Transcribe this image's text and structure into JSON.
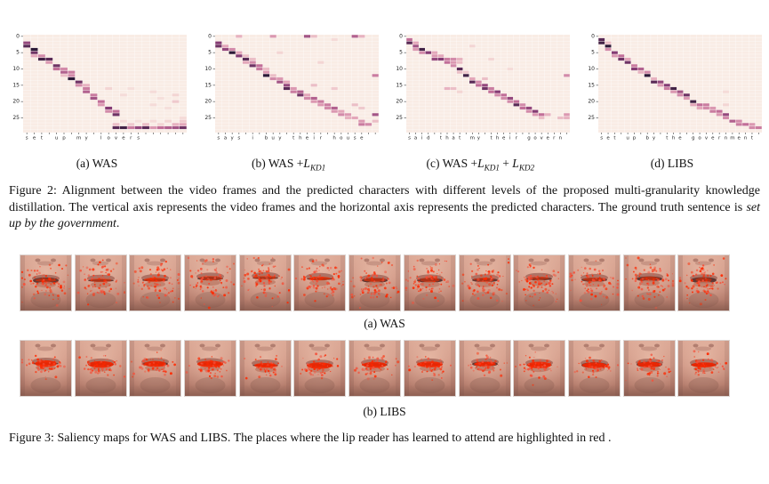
{
  "figure2": {
    "caption_prefix": "Figure 2: Alignment between the video frames and the predicted characters with different levels of the proposed multi-granularity knowledge distillation. The vertical axis represents the video frames and the horizontal axis represents the predicted characters. The ground truth sentence is ",
    "caption_italic": "set up by the government",
    "caption_suffix": "."
  },
  "chart_data": [
    {
      "type": "heatmap",
      "id": "was",
      "caption_parts": [
        {
          "t": "(a) WAS",
          "style": "plain"
        }
      ],
      "x_sentence": "set up my lovers",
      "n_cols": 22,
      "n_rows": 30,
      "y_ticks": [
        0,
        5,
        10,
        15,
        20,
        25
      ],
      "bg": "#f9ece5",
      "cells": [
        [
          2,
          0,
          0.75
        ],
        [
          3,
          0,
          0.9
        ],
        [
          4,
          1,
          1
        ],
        [
          5,
          1,
          0.85
        ],
        [
          6,
          1,
          0.4
        ],
        [
          6,
          2,
          0.5
        ],
        [
          7,
          2,
          0.95
        ],
        [
          7,
          3,
          0.9
        ],
        [
          8,
          3,
          0.45
        ],
        [
          9,
          4,
          0.85
        ],
        [
          10,
          4,
          0.6
        ],
        [
          10,
          5,
          0.5
        ],
        [
          11,
          5,
          0.65
        ],
        [
          11,
          6,
          0.55
        ],
        [
          12,
          5,
          0.3
        ],
        [
          12,
          6,
          0.5
        ],
        [
          13,
          6,
          1
        ],
        [
          14,
          7,
          0.85
        ],
        [
          15,
          7,
          0.5
        ],
        [
          15,
          8,
          0.35
        ],
        [
          16,
          8,
          0.55
        ],
        [
          17,
          8,
          0.65
        ],
        [
          18,
          9,
          0.55
        ],
        [
          19,
          9,
          0.7
        ],
        [
          20,
          10,
          0.6
        ],
        [
          21,
          10,
          0.45
        ],
        [
          22,
          11,
          0.8
        ],
        [
          23,
          11,
          0.5
        ],
        [
          23,
          12,
          0.6
        ],
        [
          24,
          12,
          0.85
        ],
        [
          16,
          11,
          0.2
        ],
        [
          16,
          14,
          0.12
        ],
        [
          17,
          17,
          0.15
        ],
        [
          18,
          13,
          0.15
        ],
        [
          18,
          20,
          0.2
        ],
        [
          19,
          18,
          0.12
        ],
        [
          20,
          20,
          0.25
        ],
        [
          21,
          17,
          0.15
        ],
        [
          22,
          19,
          0.12
        ],
        [
          25,
          21,
          0.15
        ],
        [
          26,
          13,
          0.15
        ],
        [
          26,
          15,
          0.12
        ],
        [
          26,
          17,
          0.15
        ],
        [
          26,
          19,
          0.2
        ],
        [
          26,
          21,
          0.25
        ],
        [
          27,
          12,
          0.3
        ],
        [
          27,
          14,
          0.25
        ],
        [
          27,
          16,
          0.3
        ],
        [
          27,
          18,
          0.2
        ],
        [
          27,
          20,
          0.35
        ],
        [
          27,
          21,
          0.4
        ],
        [
          28,
          12,
          0.9
        ],
        [
          28,
          13,
          0.95
        ],
        [
          28,
          14,
          0.55
        ],
        [
          28,
          15,
          0.75
        ],
        [
          28,
          16,
          0.9
        ],
        [
          28,
          17,
          0.45
        ],
        [
          28,
          18,
          0.6
        ],
        [
          28,
          19,
          0.65
        ],
        [
          28,
          20,
          0.7
        ],
        [
          28,
          21,
          0.85
        ]
      ]
    },
    {
      "type": "heatmap",
      "id": "was-kd1",
      "caption_parts": [
        {
          "t": "(b) WAS +",
          "style": "plain"
        },
        {
          "t": "L",
          "style": "mathit"
        },
        {
          "t": "KD1",
          "style": "sub"
        }
      ],
      "x_sentence": "says i buy their house",
      "n_cols": 24,
      "n_rows": 30,
      "y_ticks": [
        0,
        5,
        10,
        15,
        20,
        25
      ],
      "bg": "#f9ece5",
      "cells": [
        [
          0,
          3,
          0.35
        ],
        [
          0,
          8,
          0.45
        ],
        [
          0,
          13,
          0.7
        ],
        [
          0,
          14,
          0.3
        ],
        [
          0,
          20,
          0.65
        ],
        [
          0,
          21,
          0.35
        ],
        [
          1,
          17,
          0.15
        ],
        [
          2,
          0,
          0.8
        ],
        [
          3,
          0,
          0.85
        ],
        [
          3,
          1,
          0.4
        ],
        [
          4,
          1,
          0.75
        ],
        [
          4,
          2,
          0.5
        ],
        [
          5,
          2,
          1
        ],
        [
          5,
          3,
          0.4
        ],
        [
          5,
          9,
          0.2
        ],
        [
          6,
          3,
          0.8
        ],
        [
          6,
          4,
          0.3
        ],
        [
          7,
          4,
          0.9
        ],
        [
          7,
          5,
          0.3
        ],
        [
          8,
          4,
          0.4
        ],
        [
          8,
          5,
          0.5
        ],
        [
          8,
          15,
          0.2
        ],
        [
          9,
          5,
          0.85
        ],
        [
          9,
          6,
          0.6
        ],
        [
          10,
          6,
          0.55
        ],
        [
          10,
          7,
          0.3
        ],
        [
          11,
          7,
          0.45
        ],
        [
          12,
          7,
          1
        ],
        [
          12,
          8,
          0.3
        ],
        [
          12,
          23,
          0.55
        ],
        [
          13,
          8,
          0.5
        ],
        [
          13,
          9,
          0.45
        ],
        [
          14,
          9,
          0.7
        ],
        [
          14,
          10,
          0.4
        ],
        [
          15,
          10,
          0.75
        ],
        [
          15,
          14,
          0.3
        ],
        [
          16,
          10,
          0.9
        ],
        [
          16,
          11,
          0.45
        ],
        [
          16,
          17,
          0.25
        ],
        [
          17,
          11,
          0.55
        ],
        [
          17,
          12,
          0.65
        ],
        [
          18,
          12,
          0.85
        ],
        [
          18,
          13,
          0.4
        ],
        [
          19,
          13,
          0.5
        ],
        [
          19,
          14,
          0.65
        ],
        [
          20,
          14,
          0.45
        ],
        [
          20,
          15,
          0.55
        ],
        [
          21,
          15,
          0.45
        ],
        [
          21,
          16,
          0.55
        ],
        [
          21,
          20,
          0.3
        ],
        [
          22,
          16,
          0.5
        ],
        [
          22,
          17,
          0.65
        ],
        [
          22,
          21,
          0.25
        ],
        [
          23,
          17,
          0.45
        ],
        [
          23,
          18,
          0.4
        ],
        [
          24,
          18,
          0.5
        ],
        [
          24,
          19,
          0.45
        ],
        [
          24,
          23,
          0.7
        ],
        [
          25,
          19,
          0.35
        ],
        [
          25,
          20,
          0.4
        ],
        [
          26,
          21,
          0.45
        ],
        [
          26,
          23,
          0.3
        ],
        [
          27,
          21,
          0.55
        ],
        [
          27,
          22,
          0.5
        ]
      ]
    },
    {
      "type": "heatmap",
      "id": "was-kd1-kd2",
      "caption_parts": [
        {
          "t": "(c) WAS +",
          "style": "plain"
        },
        {
          "t": "L",
          "style": "mathit"
        },
        {
          "t": "KD1",
          "style": "sub"
        },
        {
          "t": " + ",
          "style": "plain"
        },
        {
          "t": "L",
          "style": "mathit"
        },
        {
          "t": "KD2",
          "style": "sub"
        }
      ],
      "x_sentence": "said that my their govern",
      "n_cols": 26,
      "n_rows": 30,
      "y_ticks": [
        0,
        5,
        10,
        15,
        20,
        25
      ],
      "bg": "#f9ece5",
      "cells": [
        [
          1,
          0,
          0.6
        ],
        [
          2,
          0,
          0.9
        ],
        [
          2,
          1,
          0.4
        ],
        [
          3,
          1,
          0.7
        ],
        [
          3,
          10,
          0.2
        ],
        [
          4,
          1,
          0.45
        ],
        [
          4,
          2,
          0.95
        ],
        [
          5,
          2,
          0.5
        ],
        [
          5,
          3,
          0.8
        ],
        [
          5,
          4,
          0.4
        ],
        [
          6,
          4,
          0.45
        ],
        [
          6,
          5,
          0.4
        ],
        [
          7,
          4,
          0.75
        ],
        [
          7,
          5,
          0.8
        ],
        [
          7,
          6,
          0.55
        ],
        [
          7,
          7,
          0.5
        ],
        [
          7,
          8,
          0.35
        ],
        [
          7,
          13,
          0.2
        ],
        [
          8,
          6,
          0.6
        ],
        [
          8,
          7,
          0.45
        ],
        [
          8,
          8,
          0.3
        ],
        [
          9,
          7,
          0.5
        ],
        [
          10,
          8,
          0.9
        ],
        [
          10,
          16,
          0.15
        ],
        [
          11,
          8,
          0.3
        ],
        [
          11,
          9,
          0.25
        ],
        [
          12,
          9,
          0.95
        ],
        [
          12,
          25,
          0.5
        ],
        [
          13,
          10,
          0.4
        ],
        [
          13,
          12,
          0.3
        ],
        [
          14,
          10,
          0.9
        ],
        [
          14,
          11,
          0.5
        ],
        [
          15,
          11,
          0.6
        ],
        [
          15,
          12,
          0.75
        ],
        [
          16,
          6,
          0.35
        ],
        [
          16,
          7,
          0.3
        ],
        [
          16,
          12,
          0.85
        ],
        [
          16,
          13,
          0.55
        ],
        [
          17,
          8,
          0.2
        ],
        [
          17,
          13,
          0.6
        ],
        [
          17,
          14,
          0.8
        ],
        [
          18,
          14,
          0.5
        ],
        [
          18,
          15,
          0.6
        ],
        [
          19,
          15,
          0.5
        ],
        [
          19,
          16,
          0.75
        ],
        [
          20,
          16,
          0.5
        ],
        [
          20,
          17,
          0.6
        ],
        [
          21,
          17,
          0.9
        ],
        [
          21,
          18,
          0.5
        ],
        [
          22,
          18,
          0.6
        ],
        [
          22,
          19,
          0.75
        ],
        [
          23,
          19,
          0.5
        ],
        [
          23,
          20,
          0.8
        ],
        [
          24,
          20,
          0.45
        ],
        [
          24,
          21,
          0.6
        ],
        [
          24,
          22,
          0.35
        ],
        [
          24,
          25,
          0.45
        ],
        [
          25,
          21,
          0.3
        ],
        [
          25,
          24,
          0.3
        ],
        [
          25,
          25,
          0.35
        ]
      ]
    },
    {
      "type": "heatmap",
      "id": "libs",
      "caption_parts": [
        {
          "t": "(d) LIBS",
          "style": "plain"
        }
      ],
      "x_sentence": "set up by the government",
      "n_cols": 25,
      "n_rows": 30,
      "y_ticks": [
        0,
        5,
        10,
        15,
        20,
        25
      ],
      "bg": "#f9ece5",
      "cells": [
        [
          1,
          0,
          0.9
        ],
        [
          2,
          0,
          0.95
        ],
        [
          2,
          1,
          0.3
        ],
        [
          3,
          1,
          1
        ],
        [
          4,
          1,
          0.5
        ],
        [
          5,
          2,
          0.8
        ],
        [
          6,
          2,
          0.45
        ],
        [
          6,
          3,
          0.6
        ],
        [
          7,
          3,
          0.85
        ],
        [
          7,
          4,
          0.4
        ],
        [
          8,
          4,
          0.85
        ],
        [
          9,
          5,
          0.55
        ],
        [
          10,
          5,
          0.8
        ],
        [
          10,
          6,
          0.65
        ],
        [
          11,
          6,
          0.35
        ],
        [
          11,
          7,
          0.5
        ],
        [
          12,
          7,
          1
        ],
        [
          13,
          8,
          0.35
        ],
        [
          14,
          8,
          0.9
        ],
        [
          14,
          9,
          0.75
        ],
        [
          15,
          9,
          0.45
        ],
        [
          15,
          10,
          0.8
        ],
        [
          16,
          10,
          0.55
        ],
        [
          16,
          11,
          0.95
        ],
        [
          17,
          11,
          0.45
        ],
        [
          17,
          12,
          0.7
        ],
        [
          17,
          19,
          0.15
        ],
        [
          18,
          12,
          0.5
        ],
        [
          18,
          13,
          0.85
        ],
        [
          19,
          13,
          0.45
        ],
        [
          20,
          14,
          0.95
        ],
        [
          21,
          14,
          0.4
        ],
        [
          21,
          15,
          0.6
        ],
        [
          21,
          16,
          0.55
        ],
        [
          21,
          19,
          0.2
        ],
        [
          22,
          15,
          0.4
        ],
        [
          22,
          16,
          0.5
        ],
        [
          22,
          17,
          0.45
        ],
        [
          23,
          17,
          0.55
        ],
        [
          23,
          18,
          0.6
        ],
        [
          24,
          18,
          0.45
        ],
        [
          24,
          19,
          0.75
        ],
        [
          25,
          19,
          0.5
        ],
        [
          26,
          20,
          0.65
        ],
        [
          26,
          21,
          0.5
        ],
        [
          27,
          21,
          0.55
        ],
        [
          27,
          22,
          0.6
        ],
        [
          27,
          23,
          0.45
        ],
        [
          28,
          23,
          0.5
        ],
        [
          28,
          24,
          0.55
        ]
      ]
    }
  ],
  "figure3": {
    "row_a_label": "(a) WAS",
    "row_b_label": "(b) LIBS",
    "frames_per_row": 13,
    "rows": [
      {
        "name": "WAS",
        "saliency_style": "scattered"
      },
      {
        "name": "LIBS",
        "saliency_style": "focused"
      }
    ],
    "caption": "Figure 3: Saliency maps for WAS and LIBS. The places where the lip reader has learned to attend are highlighted in red ."
  },
  "colors": {
    "heatmap_low": "#f9ece5",
    "heatmap_high": "#2c1937",
    "saliency_red": "#ff2800",
    "skin": "#cb9180"
  }
}
